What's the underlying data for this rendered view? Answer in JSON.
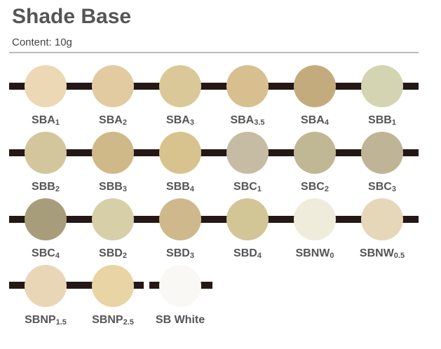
{
  "header": {
    "title": "Shade Base",
    "content": "Content: 10g"
  },
  "shades": [
    {
      "name": "SBA",
      "sub": "1",
      "color": "#ecd8b4"
    },
    {
      "name": "SBA",
      "sub": "2",
      "color": "#e2cba0"
    },
    {
      "name": "SBA",
      "sub": "3",
      "color": "#dbc898"
    },
    {
      "name": "SBA",
      "sub": "3.5",
      "color": "#d8bf8f"
    },
    {
      "name": "SBA",
      "sub": "4",
      "color": "#c4ab7e"
    },
    {
      "name": "SBB",
      "sub": "1",
      "color": "#d4d3b2"
    },
    {
      "name": "SBB",
      "sub": "2",
      "color": "#d3c59c"
    },
    {
      "name": "SBB",
      "sub": "3",
      "color": "#cfb989"
    },
    {
      "name": "SBB",
      "sub": "4",
      "color": "#d8c38e"
    },
    {
      "name": "SBC",
      "sub": "1",
      "color": "#c6bca4"
    },
    {
      "name": "SBC",
      "sub": "2",
      "color": "#c0b894"
    },
    {
      "name": "SBC",
      "sub": "3",
      "color": "#bfb496"
    },
    {
      "name": "SBC",
      "sub": "4",
      "color": "#a89d7b"
    },
    {
      "name": "SBD",
      "sub": "2",
      "color": "#d6cfa8"
    },
    {
      "name": "SBD",
      "sub": "3",
      "color": "#cfb88c"
    },
    {
      "name": "SBD",
      "sub": "4",
      "color": "#d2c697"
    },
    {
      "name": "SBNW",
      "sub": "0",
      "color": "#efecdc"
    },
    {
      "name": "SBNW",
      "sub": "0.5",
      "color": "#e6d7b8"
    },
    {
      "name": "SBNP",
      "sub": "1.5",
      "color": "#e8d6b6"
    },
    {
      "name": "SBNP",
      "sub": "2.5",
      "color": "#e9d4a5"
    },
    {
      "name": "SB White",
      "color": "#f9f8f4"
    }
  ]
}
